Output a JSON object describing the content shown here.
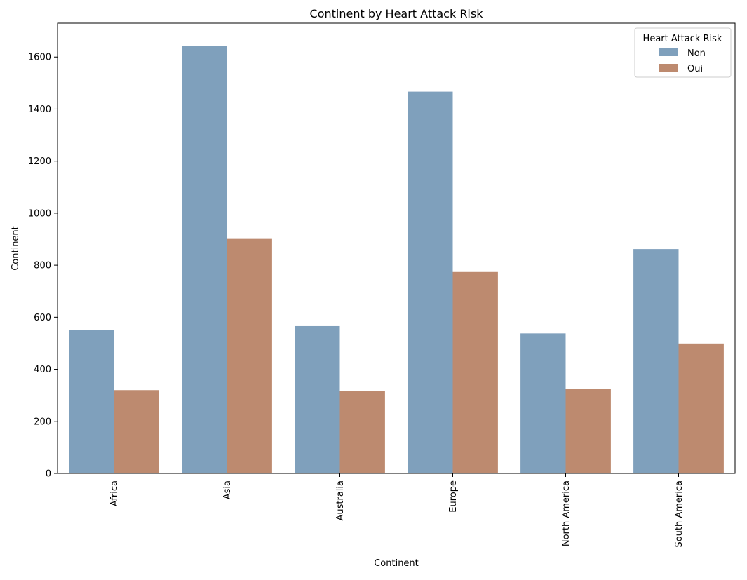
{
  "chart_data": {
    "type": "bar",
    "title": "Continent by Heart Attack Risk",
    "xlabel": "Continent",
    "ylabel": "Continent",
    "categories": [
      "Africa",
      "Asia",
      "Australia",
      "Europe",
      "North America",
      "South America"
    ],
    "series": [
      {
        "name": "Non",
        "color": "#7fa0bc",
        "values": [
          551,
          1643,
          566,
          1467,
          538,
          862
        ]
      },
      {
        "name": "Oui",
        "color": "#bd8a6f",
        "values": [
          320,
          901,
          317,
          774,
          324,
          499
        ]
      }
    ],
    "ylim": [
      0,
      1730
    ],
    "yticks": [
      0,
      200,
      400,
      600,
      800,
      1000,
      1200,
      1400,
      1600
    ],
    "legend": {
      "title": "Heart Attack Risk",
      "position": "top-right"
    },
    "grid": false
  }
}
